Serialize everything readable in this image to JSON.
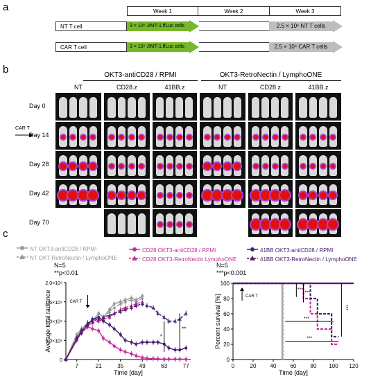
{
  "panel_labels": {
    "a": "a",
    "b": "b",
    "c": "c"
  },
  "timeline": {
    "weeks": [
      "Week 1",
      "Week 2",
      "Week 3"
    ],
    "rows": [
      {
        "name": "NT T cell",
        "injection": "3 × 10⁶ JIMT-1.ffLuc cells",
        "treatment": "2.5 × 10⁶ NT T cells"
      },
      {
        "name": "CAR T cell",
        "injection": "3 × 10⁶ JIMT-1.ffLuc cells",
        "treatment": "2.5 × 10⁶ CAR T cells"
      }
    ]
  },
  "imaging": {
    "groups": [
      "OKT3-antiCD28 / RPMI",
      "OKT3-RetroNectin / LymphoONE"
    ],
    "columns": [
      "NT",
      "CD28.z",
      "41BB.z",
      "NT",
      "CD28.z",
      "41BB.z"
    ],
    "rows": [
      "Day 0",
      "Day 14",
      "Day 28",
      "Day 42",
      "Day 70"
    ],
    "car_t_marker": "CAR T",
    "signal": [
      [
        "none",
        "none",
        "none",
        "none",
        "none",
        "none"
      ],
      [
        "low",
        "low",
        "low",
        "low",
        "low",
        "low"
      ],
      [
        "mid",
        "low",
        "low",
        "mid",
        "low",
        "low"
      ],
      [
        "high",
        "mid",
        "low",
        "high",
        "high",
        "mid"
      ],
      [
        "absent",
        "none",
        "low",
        "absent",
        "high",
        "high"
      ]
    ]
  },
  "legend": {
    "col1": [
      "NT OKT3-antiCD28 / RPMI",
      "NT OKT-RetroNectin / LymphoONE"
    ],
    "col2": [
      "CD28 OKT3-antiCD28 / RPMI",
      "CD28 OKT3-RetroNectin LymphoONE"
    ],
    "col3": [
      "41BB OKT3-antiCD28 / RPMI",
      "41BB OKT3-RetroNectin / LymphoONE"
    ]
  },
  "colors": {
    "gray": "#9a9a9a",
    "magenta": "#c2309a",
    "purple": "#4a2070",
    "green": "#76b82a",
    "arrow_gray": "#bdbdbd"
  },
  "chart_data": [
    {
      "type": "line",
      "n_text": "N=5",
      "p_text": "**p<0.01",
      "car_t_label": "CAR T",
      "sig_marks": [
        "*",
        "**"
      ],
      "xlabel": "Time [day]",
      "ylabel": "Average total radiance",
      "xticks": [
        7,
        21,
        35,
        49,
        63,
        77
      ],
      "yticks": [
        "0",
        "5.0×10⁸",
        "1.0×10⁹",
        "1.5×10⁹",
        "2.0×10⁹"
      ],
      "xlim": [
        0,
        80
      ],
      "ylim": [
        0,
        2000000000
      ],
      "series": [
        {
          "name": "NT OKT3-antiCD28 / RPMI",
          "color": "#9a9a9a",
          "dash": false,
          "marker": "circle",
          "x": [
            0,
            7,
            10,
            14,
            17,
            21,
            24,
            28,
            31,
            35,
            38,
            42,
            45,
            49
          ],
          "y": [
            0,
            650000000.0,
            800000000.0,
            950000000.0,
            1000000000.0,
            1200000000.0,
            1100000000.0,
            1300000000.0,
            1450000000.0,
            1500000000.0,
            1550000000.0,
            1600000000.0,
            1550000000.0,
            1650000000.0
          ]
        },
        {
          "name": "NT OKT-RetroNectin / LymphoONE",
          "color": "#9a9a9a",
          "dash": true,
          "marker": "triangle",
          "x": [
            0,
            7,
            10,
            14,
            17,
            21,
            24,
            28,
            31,
            35,
            38,
            42,
            45,
            49
          ],
          "y": [
            0,
            600000000.0,
            750000000.0,
            900000000.0,
            1000000000.0,
            1100000000.0,
            1050000000.0,
            1250000000.0,
            1350000000.0,
            1450000000.0,
            1500000000.0,
            1550000000.0,
            1500000000.0,
            1600000000.0
          ]
        },
        {
          "name": "CD28 OKT3-antiCD28 / RPMI",
          "color": "#c2309a",
          "dash": false,
          "marker": "circle",
          "x": [
            0,
            7,
            10,
            14,
            17,
            21,
            24,
            28,
            31,
            35,
            38,
            42,
            45,
            49,
            52,
            56,
            59,
            63,
            66,
            70,
            73,
            77
          ],
          "y": [
            0,
            500000000.0,
            700000000.0,
            850000000.0,
            800000000.0,
            750000000.0,
            550000000.0,
            450000000.0,
            350000000.0,
            250000000.0,
            200000000.0,
            150000000.0,
            100000000.0,
            50000000.0,
            30000000.0,
            20000000.0,
            15000000.0,
            10000000.0,
            10000000.0,
            10000000.0,
            10000000.0,
            10000000.0
          ]
        },
        {
          "name": "CD28 OKT3-RetroNectin LymphoONE",
          "color": "#c2309a",
          "dash": true,
          "marker": "triangle",
          "x": [
            0,
            7,
            10,
            14,
            17,
            21,
            24,
            28,
            31,
            35,
            38,
            42,
            45,
            49
          ],
          "y": [
            0,
            550000000.0,
            700000000.0,
            900000000.0,
            950000000.0,
            1000000000.0,
            1050000000.0,
            1100000000.0,
            1200000000.0,
            1300000000.0,
            1350000000.0,
            1400000000.0,
            1450000000.0,
            1500000000.0
          ]
        },
        {
          "name": "41BB OKT3-antiCD28 / RPMI",
          "color": "#4a2070",
          "dash": false,
          "marker": "circle",
          "x": [
            0,
            7,
            10,
            14,
            17,
            21,
            24,
            28,
            31,
            35,
            38,
            42,
            45,
            49,
            52,
            56,
            59,
            63,
            66,
            70,
            73,
            77
          ],
          "y": [
            0,
            550000000.0,
            750000000.0,
            900000000.0,
            1050000000.0,
            1100000000.0,
            1000000000.0,
            900000000.0,
            800000000.0,
            650000000.0,
            500000000.0,
            450000000.0,
            400000000.0,
            450000000.0,
            450000000.0,
            450000000.0,
            450000000.0,
            400000000.0,
            300000000.0,
            250000000.0,
            250000000.0,
            300000000.0
          ]
        },
        {
          "name": "41BB OKT3-RetroNectin / LymphoONE",
          "color": "#4a2070",
          "dash": true,
          "marker": "triangle",
          "x": [
            0,
            7,
            10,
            14,
            17,
            21,
            24,
            28,
            31,
            35,
            38,
            42,
            45,
            49,
            52,
            56,
            59,
            63,
            66,
            70,
            73,
            77
          ],
          "y": [
            0,
            550000000.0,
            700000000.0,
            950000000.0,
            1000000000.0,
            1050000000.0,
            1100000000.0,
            1150000000.0,
            1200000000.0,
            1250000000.0,
            1300000000.0,
            1350000000.0,
            1400000000.0,
            1450000000.0,
            1400000000.0,
            1350000000.0,
            1200000000.0,
            1100000000.0,
            1000000000.0,
            1000000000.0,
            1050000000.0,
            1200000000.0
          ]
        }
      ]
    },
    {
      "type": "line",
      "n_text": "N=5",
      "p_text": "***p<0.001",
      "car_t_label": "CAR T",
      "sig_marks": [
        "***",
        "***",
        "***",
        "***",
        "***"
      ],
      "xlabel": "Time [day]",
      "ylabel": "Percent survival [%]",
      "xticks": [
        0,
        20,
        40,
        60,
        80,
        100,
        120
      ],
      "yticks": [
        0,
        20,
        40,
        60,
        80,
        100
      ],
      "xlim": [
        0,
        120
      ],
      "ylim": [
        0,
        100
      ],
      "series": [
        {
          "name": "NT OKT3-antiCD28 / RPMI",
          "color": "#9a9a9a",
          "dash": false,
          "x": [
            0,
            49,
            49
          ],
          "y": [
            100,
            100,
            0
          ]
        },
        {
          "name": "NT OKT-RetroNectin / LymphoONE",
          "color": "#bdbdbd",
          "dash": true,
          "x": [
            0,
            50,
            50
          ],
          "y": [
            100,
            100,
            0
          ]
        },
        {
          "name": "CD28 OKT3-antiCD28 / RPMI",
          "color": "#c2309a",
          "dash": false,
          "x": [
            0,
            120
          ],
          "y": [
            100,
            100
          ]
        },
        {
          "name": "CD28 OKT3-RetroNectin LymphoONE",
          "color": "#c2309a",
          "dash": true,
          "x": [
            0,
            70,
            70,
            77,
            77,
            84,
            84,
            98,
            98,
            105
          ],
          "y": [
            100,
            100,
            80,
            80,
            60,
            60,
            40,
            40,
            20,
            20
          ]
        },
        {
          "name": "41BB OKT3-antiCD28 / RPMI",
          "color": "#4a2070",
          "dash": false,
          "x": [
            0,
            120
          ],
          "y": [
            100,
            100
          ]
        },
        {
          "name": "41BB OKT3-RetroNectin / LymphoONE",
          "color": "#4a2070",
          "dash": true,
          "x": [
            0,
            77,
            77,
            84,
            84,
            98,
            98,
            105
          ],
          "y": [
            100,
            100,
            80,
            80,
            60,
            60,
            30,
            30
          ]
        }
      ]
    }
  ]
}
